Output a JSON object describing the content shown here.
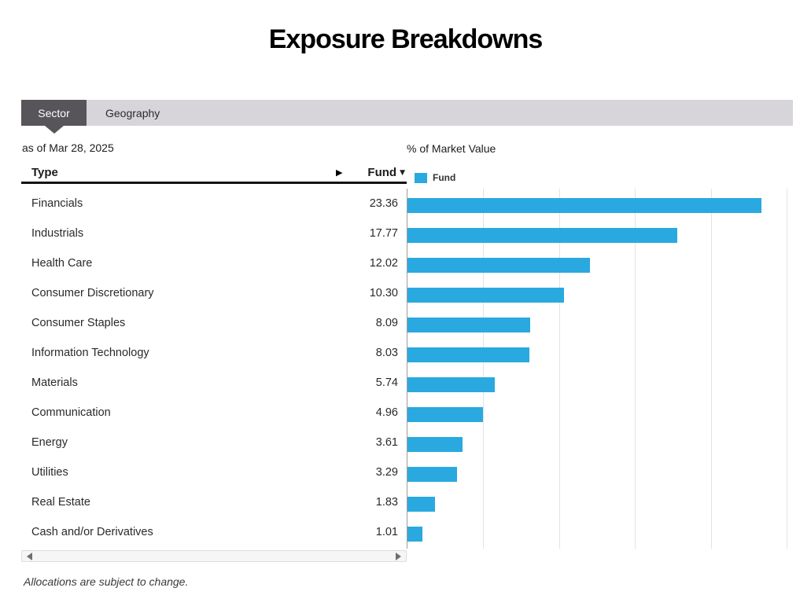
{
  "page": {
    "title": "Exposure Breakdowns",
    "as_of": "as of Mar 28, 2025",
    "footnote": "Allocations are subject to change."
  },
  "tabs": {
    "active": "Sector",
    "items": [
      {
        "label": "Sector"
      },
      {
        "label": "Geography"
      }
    ]
  },
  "table": {
    "columns": {
      "type": "Type",
      "fund": "Fund"
    },
    "sort_indicator": "▼",
    "expand_arrow": "▶",
    "rows": [
      {
        "label": "Financials",
        "value": "23.36"
      },
      {
        "label": "Industrials",
        "value": "17.77"
      },
      {
        "label": "Health Care",
        "value": "12.02"
      },
      {
        "label": "Consumer Discretionary",
        "value": "10.30"
      },
      {
        "label": "Consumer Staples",
        "value": "8.09"
      },
      {
        "label": "Information Technology",
        "value": "8.03"
      },
      {
        "label": "Materials",
        "value": "5.74"
      },
      {
        "label": "Communication",
        "value": "4.96"
      },
      {
        "label": "Energy",
        "value": "3.61"
      },
      {
        "label": "Utilities",
        "value": "3.29"
      },
      {
        "label": "Real Estate",
        "value": "1.83"
      },
      {
        "label": "Cash and/or Derivatives",
        "value": "1.01"
      }
    ]
  },
  "chart": {
    "header": "% of Market Value",
    "legend": [
      {
        "label": "Fund",
        "color": "#29a9df"
      }
    ]
  },
  "chart_data": {
    "type": "bar",
    "orientation": "horizontal",
    "title": "% of Market Value",
    "series_name": "Fund",
    "categories": [
      "Financials",
      "Industrials",
      "Health Care",
      "Consumer Discretionary",
      "Consumer Staples",
      "Information Technology",
      "Materials",
      "Communication",
      "Energy",
      "Utilities",
      "Real Estate",
      "Cash and/or Derivatives"
    ],
    "values": [
      23.36,
      17.77,
      12.02,
      10.3,
      8.09,
      8.03,
      5.74,
      4.96,
      3.61,
      3.29,
      1.83,
      1.01
    ],
    "xlim": [
      0,
      25
    ],
    "gridline_step": 5,
    "grid": true,
    "bar_color": "#29a9df",
    "legend_position": "top-left",
    "axis_labels_visible": false
  },
  "scrollbar": {
    "left_arrow": "left",
    "right_arrow": "right"
  },
  "colors": {
    "bar": "#29a9df",
    "tab_active_bg": "#57555a",
    "tab_bar_bg": "#d7d5da",
    "gridline": "#e2e2e2",
    "axis": "#9c9c9c"
  }
}
